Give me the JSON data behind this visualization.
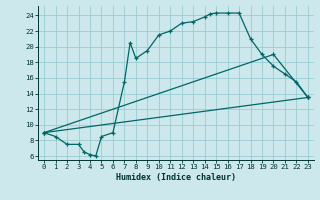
{
  "xlabel": "Humidex (Indice chaleur)",
  "bg_color": "#cce8ec",
  "grid_color": "#99ccd4",
  "line_color": "#006666",
  "xlim": [
    -0.5,
    23.5
  ],
  "ylim": [
    5.5,
    25.2
  ],
  "yticks": [
    6,
    8,
    10,
    12,
    14,
    16,
    18,
    20,
    22,
    24
  ],
  "xticks": [
    0,
    1,
    2,
    3,
    4,
    5,
    6,
    7,
    8,
    9,
    10,
    11,
    12,
    13,
    14,
    15,
    16,
    17,
    18,
    19,
    20,
    21,
    22,
    23
  ],
  "line1_x": [
    0,
    1,
    2,
    3,
    3.5,
    4,
    4.5,
    5,
    6,
    7,
    7.5,
    8,
    9,
    10,
    11,
    12,
    13,
    14,
    14.5,
    15,
    16,
    17,
    18,
    19,
    20,
    21,
    22,
    23
  ],
  "line1_y": [
    9.0,
    8.5,
    7.5,
    7.5,
    6.5,
    6.2,
    6.0,
    8.5,
    9.0,
    15.5,
    20.5,
    18.5,
    19.5,
    21.5,
    22.0,
    23.0,
    23.2,
    23.8,
    24.2,
    24.3,
    24.3,
    24.3,
    21.0,
    19.0,
    17.5,
    16.5,
    15.5,
    13.5
  ],
  "line2_x": [
    0,
    23
  ],
  "line2_y": [
    9.0,
    13.5
  ],
  "line3_x": [
    0,
    20,
    23
  ],
  "line3_y": [
    9.0,
    19.0,
    13.5
  ]
}
